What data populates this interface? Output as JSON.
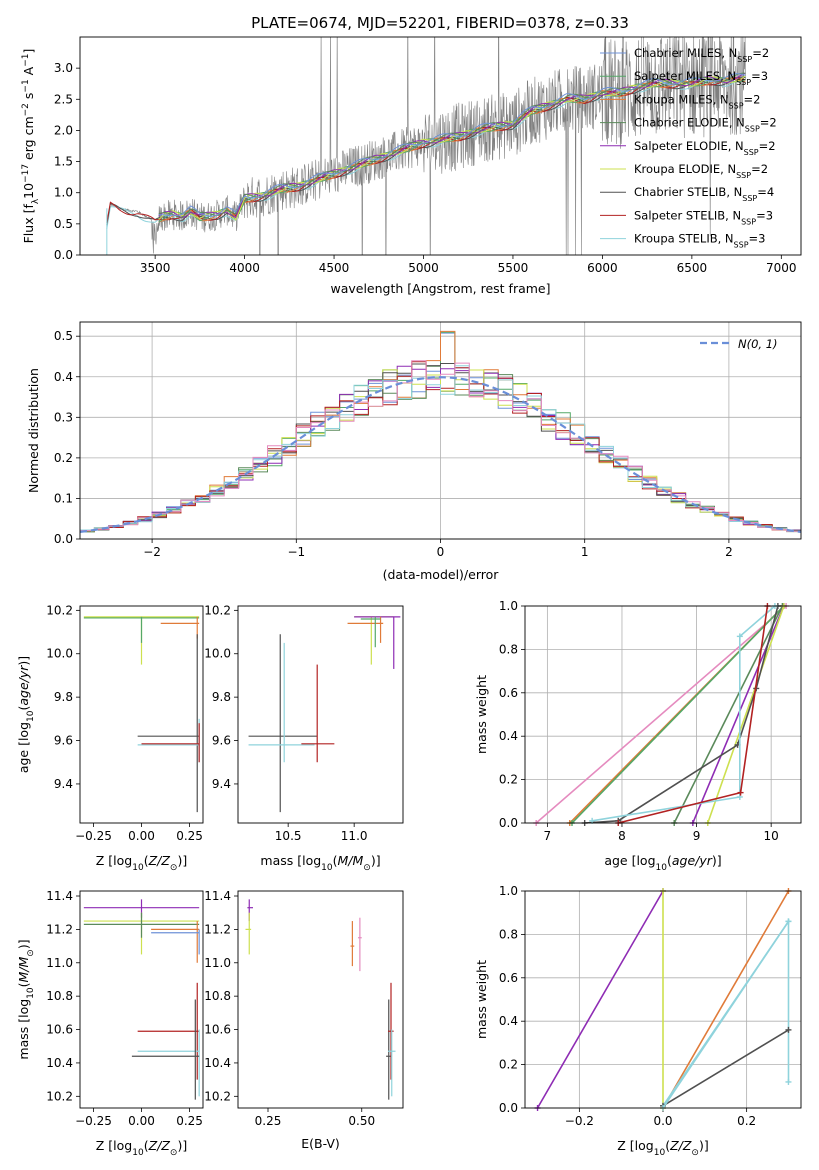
{
  "title": "PLATE=0674, MJD=52201, FIBERID=0378, z=0.33",
  "colors": {
    "chabrier_miles": "#6f93d8",
    "salpeter_miles": "#55a868",
    "kroupa_miles": "#e07b39",
    "chabrier_elodie": "#5b8a5b",
    "salpeter_elodie": "#8e2cb4",
    "kroupa_elodie": "#cde04f",
    "chabrier_stelib": "#505050",
    "salpeter_stelib": "#b22222",
    "kroupa_stelib": "#8fd3dc",
    "pink": "#e58bbf",
    "data": "#7f7f7f",
    "gaussian": "#6a8fd8"
  },
  "chart_data": [
    {
      "type": "line",
      "id": "spectrum",
      "xlabel": "wavelength [Angstrom, rest frame]",
      "ylabel": "Flux [f",
      "ylabel_parts": [
        "Flux [f",
        "λ",
        "10",
        "−17",
        " erg cm",
        "−2",
        " s",
        "−1",
        " A",
        "−1",
        "]"
      ],
      "xlim": [
        3080,
        7110
      ],
      "ylim": [
        0,
        3.5
      ],
      "xticks": [
        "3500",
        "4000",
        "4500",
        "5000",
        "5500",
        "6000",
        "6500",
        "7000"
      ],
      "xtick_values": [
        3500,
        4000,
        4500,
        5000,
        5500,
        6000,
        6500,
        7000
      ],
      "yticks": [
        "0.0",
        "0.5",
        "1.0",
        "1.5",
        "2.0",
        "2.5",
        "3.0"
      ],
      "ytick_values": [
        0,
        0.5,
        1.0,
        1.5,
        2.0,
        2.5,
        3.0
      ],
      "legend_placement": "top-right",
      "legend": [
        {
          "name": "Chabrier MILES, N",
          "sub": "SSP",
          "tail": "=2",
          "color_key": "chabrier_miles"
        },
        {
          "name": "Salpeter MILES, N",
          "sub": "SSP",
          "tail": "=3",
          "color_key": "salpeter_miles"
        },
        {
          "name": "Kroupa MILES, N",
          "sub": "SSP",
          "tail": "=2",
          "color_key": "kroupa_miles"
        },
        {
          "name": "Chabrier ELODIE, N",
          "sub": "SSP",
          "tail": "=2",
          "color_key": "chabrier_elodie"
        },
        {
          "name": "Salpeter ELODIE, N",
          "sub": "SSP",
          "tail": "=2",
          "color_key": "salpeter_elodie"
        },
        {
          "name": "Kroupa ELODIE, N",
          "sub": "SSP",
          "tail": "=2",
          "color_key": "kroupa_elodie"
        },
        {
          "name": "Chabrier STELIB, N",
          "sub": "SSP",
          "tail": "=4",
          "color_key": "chabrier_stelib"
        },
        {
          "name": "Salpeter STELIB, N",
          "sub": "SSP",
          "tail": "=3",
          "color_key": "salpeter_stelib"
        },
        {
          "name": "Kroupa STELIB, N",
          "sub": "SSP",
          "tail": "=3",
          "color_key": "kroupa_stelib"
        }
      ],
      "model_continuum": {
        "x": [
          3200,
          3250,
          3300,
          3350,
          3400,
          3450,
          3500,
          3550,
          3600,
          3650,
          3700,
          3750,
          3800,
          3850,
          3900,
          3950,
          4000,
          4100,
          4200,
          4300,
          4400,
          4500,
          4600,
          4700,
          4800,
          4900,
          5000,
          5100,
          5200,
          5300,
          5400,
          5500,
          5600,
          5700,
          5800,
          5900,
          6000,
          6100,
          6200,
          6300,
          6400,
          6500,
          6600,
          6700,
          6800
        ],
        "y": [
          0.0,
          0.82,
          0.75,
          0.72,
          0.7,
          0.62,
          0.55,
          0.62,
          0.65,
          0.62,
          0.7,
          0.6,
          0.62,
          0.65,
          0.72,
          0.6,
          0.9,
          0.95,
          1.05,
          1.1,
          1.2,
          1.3,
          1.4,
          1.5,
          1.6,
          1.7,
          1.8,
          1.85,
          1.9,
          2.0,
          2.05,
          2.1,
          2.3,
          2.4,
          2.5,
          2.5,
          2.6,
          2.6,
          2.7,
          2.75,
          2.75,
          2.75,
          2.8,
          2.8,
          2.85
        ]
      },
      "data_noise_amplitude": 0.5
    },
    {
      "type": "bar",
      "id": "residuals",
      "xlabel": "(data-model)/error",
      "ylabel": "Normed distribution",
      "xlim": [
        -2.5,
        2.5
      ],
      "ylim": [
        0,
        0.535
      ],
      "xticks": [
        "−2",
        "−1",
        "0",
        "1",
        "2"
      ],
      "xtick_values": [
        -2,
        -1,
        0,
        1,
        2
      ],
      "yticks": [
        "0.0",
        "0.1",
        "0.2",
        "0.3",
        "0.4",
        "0.5"
      ],
      "ytick_values": [
        0,
        0.1,
        0.2,
        0.3,
        0.4,
        0.5
      ],
      "bin_width": 0.1,
      "legend": [
        {
          "name": "N(0, 1)",
          "color_key": "gaussian"
        }
      ],
      "legend_placement": "top-right",
      "gaussian": {
        "mean": 0,
        "sigma": 1
      },
      "hist_color_keys": [
        "chabrier_miles",
        "salpeter_miles",
        "kroupa_miles",
        "chabrier_elodie",
        "salpeter_elodie",
        "kroupa_elodie",
        "chabrier_stelib",
        "salpeter_stelib",
        "kroupa_stelib",
        "pink"
      ]
    },
    {
      "type": "scatter",
      "id": "age_vs_Z",
      "xlabel": "Z [log",
      "xlabel_parts": [
        "Z [log",
        "10",
        "(",
        "Z/Z",
        "⊙",
        ")]"
      ],
      "ylabel_parts": [
        "age  [log",
        "10",
        "(",
        "age/yr",
        ")]"
      ],
      "xlim": [
        -0.32,
        0.32
      ],
      "ylim": [
        9.22,
        10.22
      ],
      "xticks": [
        "−0.25",
        "0.00",
        "0.25"
      ],
      "xtick_values": [
        -0.25,
        0,
        0.25
      ],
      "yticks": [
        "9.4",
        "9.6",
        "9.8",
        "10.0",
        "10.2"
      ],
      "ytick_values": [
        9.4,
        9.6,
        9.8,
        10.0,
        10.2
      ],
      "segments": [
        {
          "color_key": "kroupa_elodie",
          "h": [
            -0.3,
            0.3,
            10.17
          ],
          "v": [
            0.0,
            9.95,
            10.17
          ]
        },
        {
          "color_key": "salpeter_miles",
          "h": [
            -0.3,
            0.3,
            10.165
          ],
          "v": [
            0.0,
            10.05,
            10.17
          ]
        },
        {
          "color_key": "kroupa_miles",
          "h": [
            0.1,
            0.3,
            10.14
          ],
          "v": [
            0.29,
            10.07,
            10.17
          ]
        },
        {
          "color_key": "chabrier_stelib",
          "h": [
            -0.02,
            0.3,
            9.62
          ],
          "v": [
            0.29,
            9.27,
            10.09
          ]
        },
        {
          "color_key": "kroupa_stelib",
          "h": [
            -0.02,
            0.3,
            9.58
          ],
          "v": [
            0.3,
            9.5,
            9.7
          ]
        },
        {
          "color_key": "salpeter_stelib",
          "h": [
            0.0,
            0.3,
            9.585
          ],
          "v": [
            0.3,
            9.5,
            9.68
          ]
        }
      ]
    },
    {
      "type": "scatter",
      "id": "age_vs_mass",
      "xlabel_parts": [
        "mass [log",
        "10",
        "(",
        "M/M",
        "⊙",
        ")]"
      ],
      "xlim": [
        10.12,
        11.37
      ],
      "ylim": [
        9.22,
        10.22
      ],
      "xticks": [
        "10.5",
        "11.0"
      ],
      "xtick_values": [
        10.5,
        11.0
      ],
      "yticks": [
        "9.4",
        "9.6",
        "9.8",
        "10.0",
        "10.2"
      ],
      "ytick_values": [
        9.4,
        9.6,
        9.8,
        10.0,
        10.2
      ],
      "segments": [
        {
          "color_key": "chabrier_stelib",
          "h": [
            10.2,
            10.72,
            9.62
          ],
          "v": [
            10.44,
            9.27,
            10.09
          ]
        },
        {
          "color_key": "kroupa_stelib",
          "h": [
            10.2,
            10.7,
            9.58
          ],
          "v": [
            10.47,
            9.5,
            10.05
          ]
        },
        {
          "color_key": "salpeter_stelib",
          "h": [
            10.6,
            10.85,
            9.585
          ],
          "v": [
            10.72,
            9.5,
            9.95
          ]
        },
        {
          "color_key": "kroupa_elodie",
          "h": [
            11.0,
            11.3,
            10.17
          ],
          "v": [
            11.13,
            9.95,
            10.17
          ]
        },
        {
          "color_key": "salpeter_elodie",
          "h": [
            11.0,
            11.35,
            10.17
          ],
          "v": [
            11.3,
            9.93,
            10.17
          ]
        },
        {
          "color_key": "kroupa_miles",
          "h": [
            10.95,
            11.22,
            10.14
          ],
          "v": [
            11.2,
            10.05,
            10.17
          ]
        },
        {
          "color_key": "salpeter_miles",
          "h": [
            11.05,
            11.2,
            10.16
          ],
          "v": [
            11.16,
            10.03,
            10.17
          ]
        }
      ]
    },
    {
      "type": "line",
      "id": "weight_vs_age",
      "ylabel": "mass weight",
      "xlabel_parts": [
        "age  [log",
        "10",
        "(",
        "age/yr",
        ")]"
      ],
      "xlim": [
        6.7,
        10.4
      ],
      "ylim": [
        0,
        1.0
      ],
      "xticks": [
        "7",
        "8",
        "9",
        "10"
      ],
      "xtick_values": [
        7,
        8,
        9,
        10
      ],
      "yticks": [
        "0.0",
        "0.2",
        "0.4",
        "0.6",
        "0.8",
        "1.0"
      ],
      "ytick_values": [
        0,
        0.2,
        0.4,
        0.6,
        0.8,
        1.0
      ],
      "series": [
        {
          "color_key": "pink",
          "x": [
            6.85,
            10.2
          ],
          "y": [
            0.0,
            1.0
          ]
        },
        {
          "color_key": "kroupa_miles",
          "x": [
            7.3,
            10.17
          ],
          "y": [
            0.0,
            1.0
          ]
        },
        {
          "color_key": "salpeter_miles",
          "x": [
            7.33,
            10.17
          ],
          "y": [
            0.0,
            1.0
          ]
        },
        {
          "color_key": "chabrier_elodie",
          "x": [
            8.7,
            10.15
          ],
          "y": [
            0.0,
            1.0
          ]
        },
        {
          "color_key": "salpeter_elodie",
          "x": [
            8.95,
            10.17
          ],
          "y": [
            0.0,
            1.0
          ]
        },
        {
          "color_key": "kroupa_elodie",
          "x": [
            9.15,
            10.17
          ],
          "y": [
            0.0,
            1.0
          ]
        },
        {
          "color_key": "chabrier_stelib",
          "x": [
            7.5,
            7.95,
            9.55,
            9.8,
            10.09
          ],
          "y": [
            0.0,
            0.01,
            0.36,
            0.62,
            1.0
          ]
        },
        {
          "color_key": "kroupa_stelib",
          "x": [
            7.6,
            9.58,
            9.58,
            10.05
          ],
          "y": [
            0.01,
            0.12,
            0.86,
            1.0
          ]
        },
        {
          "color_key": "salpeter_stelib",
          "x": [
            7.95,
            9.59,
            9.95
          ],
          "y": [
            0.0,
            0.14,
            1.0
          ]
        }
      ]
    },
    {
      "type": "scatter",
      "id": "mass_vs_Z",
      "ylabel_parts": [
        "mass [log",
        "10",
        "(",
        "M/M",
        "⊙",
        ")]"
      ],
      "xlabel_parts": [
        "Z [log",
        "10",
        "(",
        "Z/Z",
        "⊙",
        ")]"
      ],
      "xlim": [
        -0.32,
        0.32
      ],
      "ylim": [
        10.13,
        11.43
      ],
      "xticks": [
        "−0.25",
        "0.00",
        "0.25"
      ],
      "xtick_values": [
        -0.25,
        0,
        0.25
      ],
      "yticks": [
        "10.2",
        "10.4",
        "10.6",
        "10.8",
        "11.0",
        "11.2",
        "11.4"
      ],
      "ytick_values": [
        10.2,
        10.4,
        10.6,
        10.8,
        11.0,
        11.2,
        11.4
      ],
      "segments": [
        {
          "color_key": "salpeter_elodie",
          "h": [
            -0.3,
            0.3,
            11.33
          ],
          "v": [
            0.0,
            11.27,
            11.38
          ]
        },
        {
          "color_key": "kroupa_elodie",
          "h": [
            -0.3,
            0.3,
            11.25
          ],
          "v": [
            0.0,
            11.05,
            11.3
          ]
        },
        {
          "color_key": "chabrier_elodie",
          "h": [
            -0.3,
            0.3,
            11.23
          ],
          "v": [
            0.0,
            11.15,
            11.3
          ]
        },
        {
          "color_key": "kroupa_miles",
          "h": [
            0.05,
            0.3,
            11.2
          ],
          "v": [
            0.29,
            11.0,
            11.25
          ]
        },
        {
          "color_key": "chabrier_miles",
          "h": [
            0.05,
            0.3,
            11.18
          ],
          "v": [
            0.3,
            11.05,
            11.2
          ]
        },
        {
          "color_key": "salpeter_stelib",
          "h": [
            -0.02,
            0.3,
            10.59
          ],
          "v": [
            0.29,
            10.3,
            10.88
          ]
        },
        {
          "color_key": "kroupa_stelib",
          "h": [
            -0.02,
            0.3,
            10.47
          ],
          "v": [
            0.3,
            10.2,
            10.6
          ]
        },
        {
          "color_key": "chabrier_stelib",
          "h": [
            -0.05,
            0.3,
            10.44
          ],
          "v": [
            0.28,
            10.18,
            10.78
          ]
        }
      ]
    },
    {
      "type": "scatter",
      "id": "mass_vs_EBV",
      "xlabel": "E(B-V)",
      "xlim": [
        0.17,
        0.61
      ],
      "ylim": [
        10.13,
        11.43
      ],
      "xticks": [
        "0.25",
        "0.50"
      ],
      "xtick_values": [
        0.25,
        0.5
      ],
      "yticks": [
        "10.2",
        "10.4",
        "10.6",
        "10.8",
        "11.0",
        "11.2",
        "11.4"
      ],
      "ytick_values": [
        10.2,
        10.4,
        10.6,
        10.8,
        11.0,
        11.2,
        11.4
      ],
      "segments": [
        {
          "color_key": "salpeter_elodie",
          "h": [
            0.195,
            0.21,
            11.33
          ],
          "v": [
            0.2,
            11.25,
            11.38
          ]
        },
        {
          "color_key": "kroupa_elodie",
          "h": [
            0.19,
            0.205,
            11.2
          ],
          "v": [
            0.2,
            11.05,
            11.3
          ]
        },
        {
          "color_key": "pink",
          "h": [
            0.49,
            0.5,
            11.15
          ],
          "v": [
            0.495,
            10.95,
            11.27
          ]
        },
        {
          "color_key": "kroupa_miles",
          "h": [
            0.47,
            0.48,
            11.1
          ],
          "v": [
            0.475,
            10.98,
            11.25
          ]
        },
        {
          "color_key": "chabrier_stelib",
          "h": [
            0.565,
            0.58,
            10.44
          ],
          "v": [
            0.572,
            10.18,
            10.78
          ]
        },
        {
          "color_key": "salpeter_stelib",
          "h": [
            0.57,
            0.585,
            10.59
          ],
          "v": [
            0.578,
            10.3,
            10.88
          ]
        },
        {
          "color_key": "kroupa_stelib",
          "h": [
            0.57,
            0.59,
            10.47
          ],
          "v": [
            0.58,
            10.2,
            10.6
          ]
        }
      ]
    },
    {
      "type": "line",
      "id": "weight_vs_Z",
      "ylabel": "mass weight",
      "xlabel_parts": [
        "Z [log",
        "10",
        "(",
        "Z/Z",
        "⊙",
        ")]"
      ],
      "xlim": [
        -0.33,
        0.33
      ],
      "ylim": [
        0,
        1.0
      ],
      "xticks": [
        "−0.2",
        "0.0",
        "0.2"
      ],
      "xtick_values": [
        -0.2,
        0,
        0.2
      ],
      "yticks": [
        "0.0",
        "0.2",
        "0.4",
        "0.6",
        "0.8",
        "1.0"
      ],
      "ytick_values": [
        0,
        0.2,
        0.4,
        0.6,
        0.8,
        1.0
      ],
      "series": [
        {
          "color_key": "salpeter_elodie",
          "x": [
            -0.3,
            0.0
          ],
          "y": [
            0.0,
            1.0
          ]
        },
        {
          "color_key": "kroupa_elodie",
          "x": [
            0.0,
            0.0
          ],
          "y": [
            0.0,
            1.0
          ]
        },
        {
          "color_key": "kroupa_miles",
          "x": [
            0.0,
            0.3
          ],
          "y": [
            0.0,
            1.0
          ]
        },
        {
          "color_key": "kroupa_stelib",
          "x": [
            0.0,
            0.3,
            0.3
          ],
          "y": [
            0.01,
            0.86,
            0.12
          ]
        },
        {
          "color_key": "chabrier_stelib",
          "x": [
            0.0,
            0.3
          ],
          "y": [
            0.01,
            0.36
          ]
        },
        {
          "color_key": "kroupa_stelib",
          "x": [
            0.0,
            0.3
          ],
          "y": [
            0.0,
            0.86
          ]
        }
      ]
    }
  ]
}
